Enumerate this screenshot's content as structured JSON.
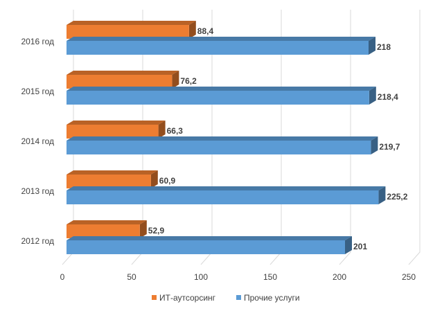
{
  "chart_data": {
    "type": "bar",
    "orientation": "horizontal",
    "categories": [
      "2016 год",
      "2015 год",
      "2014 год",
      "2013 год",
      "2012 год"
    ],
    "series": [
      {
        "name": "ИТ-аутсорсинг",
        "values": [
          88.4,
          76.2,
          66.3,
          60.9,
          52.9
        ],
        "labels": [
          "88,4",
          "76,2",
          "66,3",
          "60,9",
          "52,9"
        ],
        "color": "#ED7D31"
      },
      {
        "name": "Прочие услуги",
        "values": [
          218,
          218.4,
          219.7,
          225.2,
          201
        ],
        "labels": [
          "218",
          "218,4",
          "219,7",
          "225,2",
          "201"
        ],
        "color": "#5B9BD5"
      }
    ],
    "xlim": [
      0,
      250
    ],
    "xticks": [
      "0",
      "50",
      "100",
      "150",
      "200",
      "250"
    ],
    "grid": true,
    "legend": "bottom",
    "style": "3d"
  }
}
